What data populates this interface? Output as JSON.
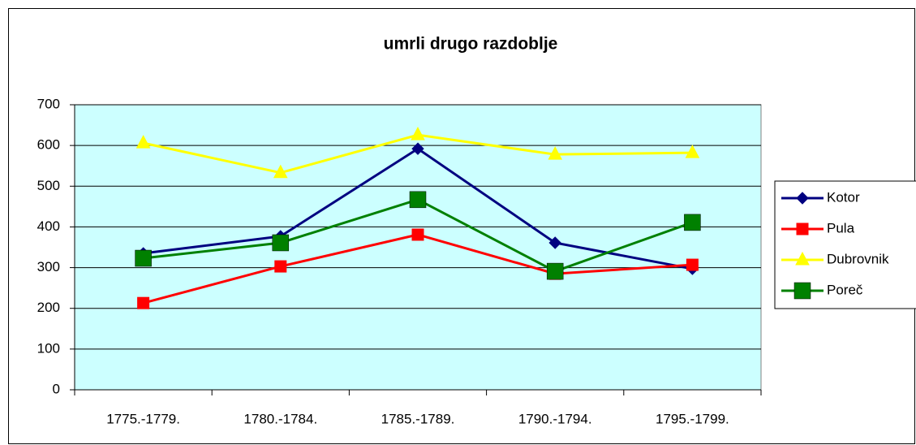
{
  "chart_data": {
    "type": "line",
    "title": "umrli drugo razdoblje",
    "categories": [
      "1775.-1779.",
      "1780.-1784.",
      "1785.-1789.",
      "1790.-1794.",
      "1795.-1799."
    ],
    "series": [
      {
        "name": "Kotor",
        "color": "#000080",
        "marker": "diamond",
        "values": [
          335,
          377,
          592,
          361,
          297
        ]
      },
      {
        "name": "Pula",
        "color": "#ff0000",
        "marker": "square",
        "values": [
          213,
          303,
          381,
          285,
          307
        ]
      },
      {
        "name": "Dubrovnik",
        "color": "#ffff00",
        "marker": "triangle",
        "values": [
          606,
          533,
          626,
          578,
          582
        ]
      },
      {
        "name": "Poreč",
        "color": "#008000",
        "marker": "big-square",
        "values": [
          323,
          361,
          467,
          291,
          411
        ]
      }
    ],
    "ylim": [
      0,
      700
    ],
    "yticks": [
      0,
      100,
      200,
      300,
      400,
      500,
      600,
      700
    ],
    "grid": true,
    "plot_background": "#ccffff",
    "legend": "right"
  }
}
